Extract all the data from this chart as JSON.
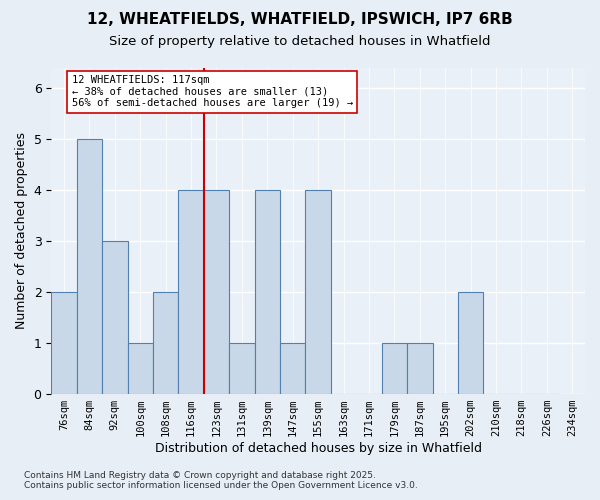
{
  "title1": "12, WHEATFIELDS, WHATFIELD, IPSWICH, IP7 6RB",
  "title2": "Size of property relative to detached houses in Whatfield",
  "xlabel": "Distribution of detached houses by size in Whatfield",
  "ylabel": "Number of detached properties",
  "bins": [
    "76sqm",
    "84sqm",
    "92sqm",
    "100sqm",
    "108sqm",
    "116sqm",
    "123sqm",
    "131sqm",
    "139sqm",
    "147sqm",
    "155sqm",
    "163sqm",
    "171sqm",
    "179sqm",
    "187sqm",
    "195sqm",
    "202sqm",
    "210sqm",
    "218sqm",
    "226sqm",
    "234sqm"
  ],
  "values": [
    2,
    5,
    3,
    1,
    2,
    4,
    4,
    1,
    4,
    1,
    4,
    0,
    0,
    1,
    1,
    0,
    2,
    0,
    0,
    0
  ],
  "bar_color": "#c8d8e8",
  "bar_edge_color": "#5080b0",
  "vline_x": 5.5,
  "vline_color": "#cc0000",
  "annotation_text": "12 WHEATFIELDS: 117sqm\n← 38% of detached houses are smaller (13)\n56% of semi-detached houses are larger (19) →",
  "annotation_box_color": "#ffffff",
  "annotation_box_edge": "#cc0000",
  "ylim": [
    0,
    6.4
  ],
  "yticks": [
    0,
    1,
    2,
    3,
    4,
    5,
    6
  ],
  "footer1": "Contains HM Land Registry data © Crown copyright and database right 2025.",
  "footer2": "Contains public sector information licensed under the Open Government Licence v3.0.",
  "bg_color": "#e8eef5",
  "plot_bg_color": "#eaf0f8"
}
